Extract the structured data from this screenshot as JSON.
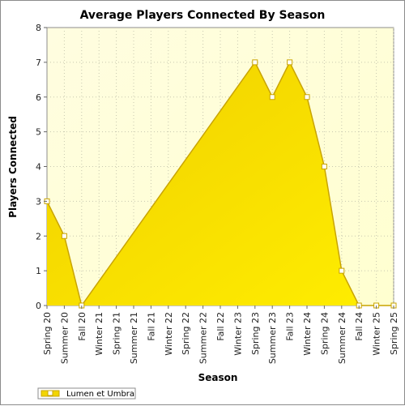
{
  "chart_data": {
    "type": "area",
    "title": "Average Players Connected By Season",
    "xlabel": "Season",
    "ylabel": "Players Connected",
    "ylim": [
      0,
      8
    ],
    "yticks": [
      0,
      1,
      2,
      3,
      4,
      5,
      6,
      7,
      8
    ],
    "grid": true,
    "legend_position": "bottom-left",
    "categories": [
      "Spring 20",
      "Summer 20",
      "Fall 20",
      "Winter 21",
      "Spring 21",
      "Summer 21",
      "Fall 21",
      "Winter 22",
      "Spring 22",
      "Summer 22",
      "Fall 22",
      "Winter 23",
      "Spring 23",
      "Summer 23",
      "Fall 23",
      "Winter 24",
      "Spring 24",
      "Summer 24",
      "Fall 24",
      "Winter 25",
      "Spring 25"
    ],
    "series": [
      {
        "name": "Lumen et Umbra",
        "color": "#f2d600",
        "line_color": "#c9a400",
        "values": [
          3,
          2,
          0,
          null,
          null,
          null,
          null,
          null,
          null,
          null,
          null,
          null,
          7,
          6,
          7,
          6,
          4,
          1,
          0,
          0,
          0
        ]
      }
    ]
  }
}
